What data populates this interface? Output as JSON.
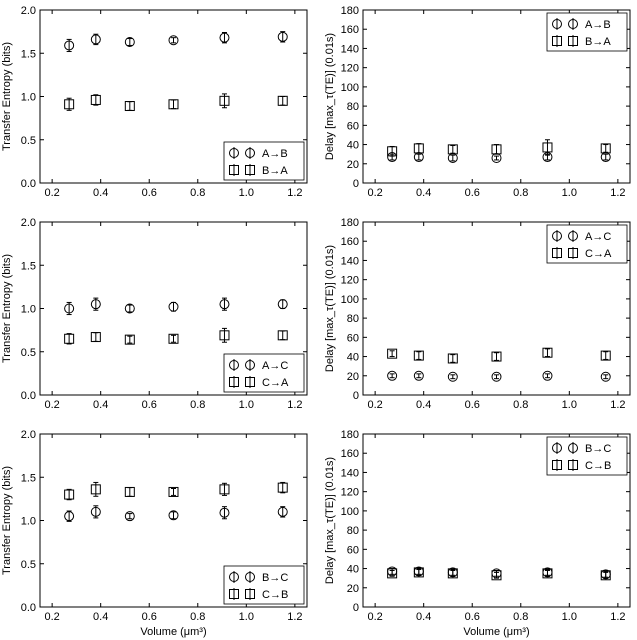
{
  "chart_data": [
    {
      "type": "scatter",
      "panel": "top-left",
      "ylabel": "Transfer Entropy (bits)",
      "xlabel": "",
      "xlim": [
        0.15,
        1.25
      ],
      "ylim": [
        0,
        2.0
      ],
      "xticks": [
        "0.2",
        "0.4",
        "0.6",
        "0.8",
        "1.0",
        "1.2"
      ],
      "yticks": [
        "0.0",
        "0.5",
        "1.0",
        "1.5",
        "2.0"
      ],
      "legend_position": "lower-right",
      "x": [
        0.27,
        0.38,
        0.52,
        0.7,
        0.91,
        1.15
      ],
      "series": [
        {
          "name": "A→B",
          "marker": "circle",
          "values": [
            1.59,
            1.66,
            1.63,
            1.65,
            1.68,
            1.69
          ],
          "err": [
            0.07,
            0.06,
            0.04,
            0.03,
            0.06,
            0.06
          ]
        },
        {
          "name": "B→A",
          "marker": "square",
          "values": [
            0.91,
            0.96,
            0.89,
            0.91,
            0.95,
            0.95
          ],
          "err": [
            0.07,
            0.06,
            0.05,
            0.05,
            0.08,
            0.05
          ]
        }
      ]
    },
    {
      "type": "scatter",
      "panel": "top-right",
      "ylabel": "Delay [max_τ(TE)] (0.01s)",
      "xlabel": "",
      "xlim": [
        0.15,
        1.25
      ],
      "ylim": [
        0,
        180
      ],
      "xticks": [
        "0.2",
        "0.4",
        "0.6",
        "0.8",
        "1.0",
        "1.2"
      ],
      "yticks": [
        "0",
        "20",
        "40",
        "60",
        "80",
        "100",
        "120",
        "140",
        "160",
        "180"
      ],
      "legend_position": "upper-right",
      "x": [
        0.27,
        0.38,
        0.52,
        0.7,
        0.91,
        1.15
      ],
      "series": [
        {
          "name": "A→B",
          "marker": "circle",
          "values": [
            27,
            27,
            26,
            26,
            27,
            27
          ],
          "err": [
            3,
            3,
            3,
            2,
            3,
            3
          ]
        },
        {
          "name": "B→A",
          "marker": "square",
          "values": [
            33,
            36,
            35,
            35,
            37,
            36
          ],
          "err": [
            5,
            5,
            4,
            5,
            8,
            4
          ]
        }
      ]
    },
    {
      "type": "scatter",
      "panel": "middle-left",
      "ylabel": "Transfer Entropy (bits)",
      "xlabel": "",
      "xlim": [
        0.15,
        1.25
      ],
      "ylim": [
        0,
        2.0
      ],
      "xticks": [
        "0.2",
        "0.4",
        "0.6",
        "0.8",
        "1.0",
        "1.2"
      ],
      "yticks": [
        "0.0",
        "0.5",
        "1.0",
        "1.5",
        "2.0"
      ],
      "legend_position": "lower-right",
      "x": [
        0.27,
        0.38,
        0.52,
        0.7,
        0.91,
        1.15
      ],
      "series": [
        {
          "name": "A→C",
          "marker": "circle",
          "values": [
            1.0,
            1.05,
            1.0,
            1.02,
            1.05,
            1.05
          ],
          "err": [
            0.07,
            0.07,
            0.04,
            0.05,
            0.07,
            0.05
          ]
        },
        {
          "name": "C→A",
          "marker": "square",
          "values": [
            0.65,
            0.67,
            0.64,
            0.65,
            0.69,
            0.69
          ],
          "err": [
            0.06,
            0.05,
            0.04,
            0.04,
            0.08,
            0.05
          ]
        }
      ]
    },
    {
      "type": "scatter",
      "panel": "middle-right",
      "ylabel": "Delay [max_τ(TE)] (0.01s)",
      "xlabel": "",
      "xlim": [
        0.15,
        1.25
      ],
      "ylim": [
        0,
        180
      ],
      "xticks": [
        "0.2",
        "0.4",
        "0.6",
        "0.8",
        "1.0",
        "1.2"
      ],
      "yticks": [
        "0",
        "20",
        "40",
        "60",
        "80",
        "100",
        "120",
        "140",
        "160",
        "180"
      ],
      "legend_position": "upper-right",
      "x": [
        0.27,
        0.38,
        0.52,
        0.7,
        0.91,
        1.15
      ],
      "series": [
        {
          "name": "A→C",
          "marker": "circle",
          "values": [
            20,
            20,
            19,
            19,
            20,
            19
          ],
          "err": [
            2,
            2,
            2,
            2,
            2,
            2
          ]
        },
        {
          "name": "C→A",
          "marker": "square",
          "values": [
            43,
            41,
            38,
            40,
            44,
            41
          ],
          "err": [
            3,
            4,
            4,
            4,
            4,
            4
          ]
        }
      ]
    },
    {
      "type": "scatter",
      "panel": "bottom-left",
      "ylabel": "Transfer Entropy (bits)",
      "xlabel": "Volume (μm³)",
      "xlim": [
        0.15,
        1.25
      ],
      "ylim": [
        0,
        2.0
      ],
      "xticks": [
        "0.2",
        "0.4",
        "0.6",
        "0.8",
        "1.0",
        "1.2"
      ],
      "yticks": [
        "0.0",
        "0.5",
        "1.0",
        "1.5",
        "2.0"
      ],
      "legend_position": "lower-right",
      "x": [
        0.27,
        0.38,
        0.52,
        0.7,
        0.91,
        1.15
      ],
      "series": [
        {
          "name": "B→C",
          "marker": "circle",
          "values": [
            1.05,
            1.1,
            1.05,
            1.06,
            1.09,
            1.1
          ],
          "err": [
            0.06,
            0.07,
            0.03,
            0.04,
            0.07,
            0.06
          ]
        },
        {
          "name": "C→B",
          "marker": "square",
          "values": [
            1.3,
            1.36,
            1.33,
            1.33,
            1.36,
            1.38
          ],
          "err": [
            0.06,
            0.08,
            0.05,
            0.04,
            0.07,
            0.06
          ]
        }
      ]
    },
    {
      "type": "scatter",
      "panel": "bottom-right",
      "ylabel": "Delay [max_τ(TE)] (0.01s)",
      "xlabel": "Volume (μm³)",
      "xlim": [
        0.15,
        1.25
      ],
      "ylim": [
        0,
        180
      ],
      "xticks": [
        "0.2",
        "0.4",
        "0.6",
        "0.8",
        "1.0",
        "1.2"
      ],
      "yticks": [
        "0",
        "20",
        "40",
        "60",
        "80",
        "100",
        "120",
        "140",
        "160",
        "180"
      ],
      "legend_position": "upper-right",
      "x": [
        0.27,
        0.38,
        0.52,
        0.7,
        0.91,
        1.15
      ],
      "series": [
        {
          "name": "B→C",
          "marker": "circle",
          "values": [
            37,
            37,
            36,
            35,
            36,
            34
          ],
          "err": [
            3,
            3,
            3,
            3,
            3,
            3
          ]
        },
        {
          "name": "C→B",
          "marker": "square",
          "values": [
            35,
            36,
            35,
            33,
            35,
            33
          ],
          "err": [
            3,
            3,
            3,
            3,
            3,
            3
          ]
        }
      ]
    }
  ]
}
